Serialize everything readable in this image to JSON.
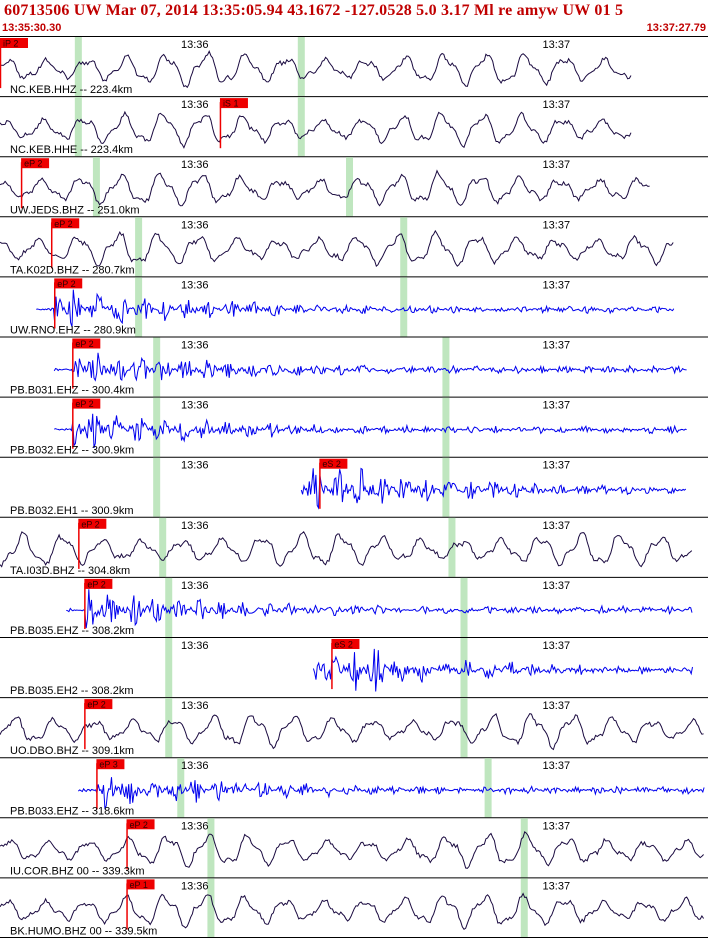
{
  "header": {
    "title": "60713506 UW Mar 07, 2014 13:35:05.94   43.1672 -127.0528  5.0 3.17 Ml re amyw UW 01   5",
    "start_time": "13:35:30.30",
    "end_time": "13:37:27.79"
  },
  "colors": {
    "header_text": "#c00000",
    "pick_fill": "#ee0000",
    "short_period_trace": "#0000ee",
    "broadband_trace": "#1a0a40",
    "travel_time_window": "#bfe6bf",
    "separator": "#000000"
  },
  "chart_data": {
    "type": "line",
    "title": "60713506 UW Mar 07, 2014 13:35:05.94   43.1672 -127.0528  5.0 3.17 Ml re amyw UW 01   5",
    "x_range": [
      "13:35:30.30",
      "13:37:27.79"
    ],
    "time_markers": [
      "13:36",
      "13:37"
    ],
    "time_markers_sec": [
      29.7,
      89.7
    ],
    "window_sec": 117.49,
    "series": [
      {
        "name": "NC.KEB.HHZ -- 223.4km",
        "kind": "broadband",
        "pick": "iP 2",
        "pick_sec": 0.0,
        "green_sec": [
          13.0,
          50.0
        ],
        "end_sec": 105
      },
      {
        "name": "NC.KEB.HHE -- 223.4km",
        "kind": "broadband",
        "pick": "iS 1",
        "pick_sec": 36.5,
        "green_sec": [
          13.0,
          50.0
        ],
        "end_sec": 105
      },
      {
        "name": "UW.JEDS.BHZ -- 251.0km",
        "kind": "broadband",
        "pick": "eP 2",
        "pick_sec": 3.5,
        "green_sec": [
          16.0,
          58.0
        ],
        "end_sec": 108
      },
      {
        "name": "TA.K02D.BHZ -- 280.7km",
        "kind": "broadband",
        "pick": "eP 2",
        "pick_sec": 8.5,
        "green_sec": [
          23.0,
          67.0
        ],
        "end_sec": 112
      },
      {
        "name": "UW.RNO.EHZ -- 280.9km",
        "kind": "short",
        "pick": "eP 2",
        "pick_sec": 9.0,
        "green_sec": [
          23.0,
          67.0
        ],
        "end_sec": 112
      },
      {
        "name": "PB.B031.EHZ -- 300.4km",
        "kind": "short",
        "pick": "eP 2",
        "pick_sec": 12.0,
        "green_sec": [
          26.0,
          74.0
        ],
        "end_sec": 114
      },
      {
        "name": "PB.B032.EHZ -- 300.9km",
        "kind": "short",
        "pick": "eP 2",
        "pick_sec": 12.0,
        "green_sec": [
          26.0,
          74.0
        ],
        "end_sec": 114
      },
      {
        "name": "PB.B032.EH1 -- 300.9km",
        "kind": "short",
        "pick": "eS 2",
        "pick_sec": 53.0,
        "green_sec": [
          26.0,
          74.0
        ],
        "end_sec": 114
      },
      {
        "name": "TA.I03D.BHZ -- 304.8km",
        "kind": "broadband",
        "pick": "eP 2",
        "pick_sec": 13.0,
        "green_sec": [
          27.0,
          75.0
        ],
        "end_sec": 115
      },
      {
        "name": "PB.B035.EHZ -- 308.2km",
        "kind": "short",
        "pick": "eP 2",
        "pick_sec": 14.0,
        "green_sec": [
          28.0,
          77.0
        ],
        "end_sec": 115
      },
      {
        "name": "PB.B035.EH2 -- 308.2km",
        "kind": "short",
        "pick": "eS 2",
        "pick_sec": 55.0,
        "green_sec": [
          28.0,
          77.0
        ],
        "end_sec": 115
      },
      {
        "name": "UO.DBO.BHZ -- 309.1km",
        "kind": "broadband",
        "pick": "eP 2",
        "pick_sec": 14.0,
        "green_sec": [
          28.0,
          77.0
        ],
        "end_sec": 117
      },
      {
        "name": "PB.B033.EHZ -- 318.6km",
        "kind": "short",
        "pick": "eP 3",
        "pick_sec": 16.0,
        "green_sec": [
          30.0,
          81.0
        ],
        "end_sec": 117
      },
      {
        "name": "IU.COR.BHZ 00 -- 339.3km",
        "kind": "broadband",
        "pick": "eP 2",
        "pick_sec": 21.0,
        "green_sec": [
          35.0,
          87.0
        ],
        "end_sec": 117
      },
      {
        "name": "BK.HUMO.BHZ 00 -- 339.5km",
        "kind": "broadband",
        "pick": "eP 1",
        "pick_sec": 21.0,
        "green_sec": [
          35.0,
          87.0
        ],
        "end_sec": 117
      }
    ]
  }
}
